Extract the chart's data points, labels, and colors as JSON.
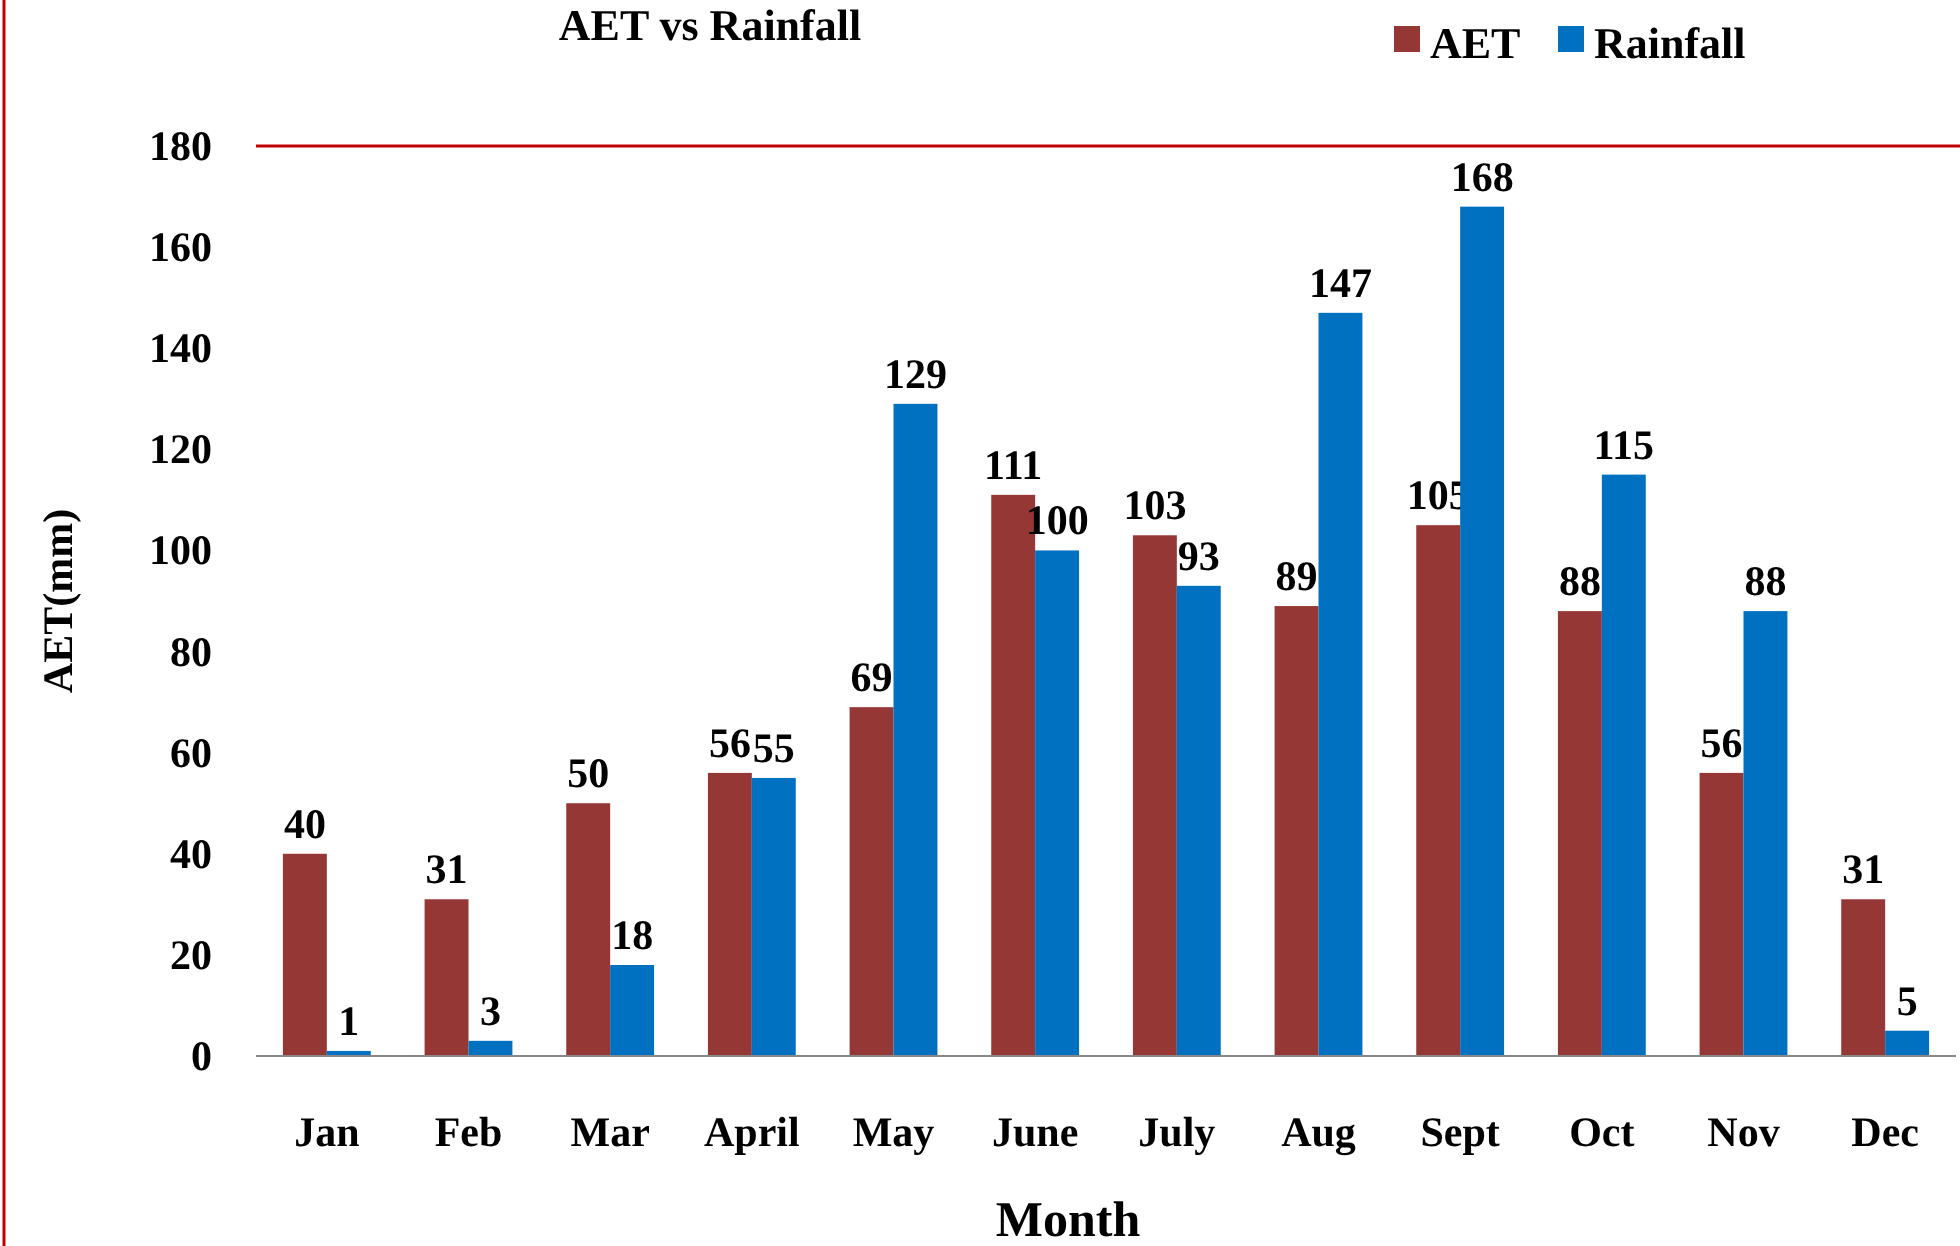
{
  "chart_data": {
    "type": "bar",
    "title": "AET vs Rainfall",
    "xlabel": "Month",
    "ylabel": "AET(mm)",
    "categories": [
      "Jan",
      "Feb",
      "Mar",
      "April",
      "May",
      "June",
      "July",
      "Aug",
      "Sept",
      "Oct",
      "Nov",
      "Dec"
    ],
    "series": [
      {
        "name": "AET",
        "color": "#953735",
        "values": [
          40,
          31,
          50,
          56,
          69,
          111,
          103,
          89,
          105,
          88,
          56,
          31
        ]
      },
      {
        "name": "Rainfall",
        "color": "#0070c0",
        "values": [
          1,
          3,
          18,
          55,
          129,
          100,
          93,
          147,
          168,
          115,
          88,
          5
        ]
      }
    ],
    "ylim": [
      0,
      180
    ],
    "yticks": [
      0,
      20,
      40,
      60,
      80,
      100,
      120,
      140,
      160,
      180
    ],
    "data_labels": true,
    "legend": "top right",
    "grid": false
  }
}
